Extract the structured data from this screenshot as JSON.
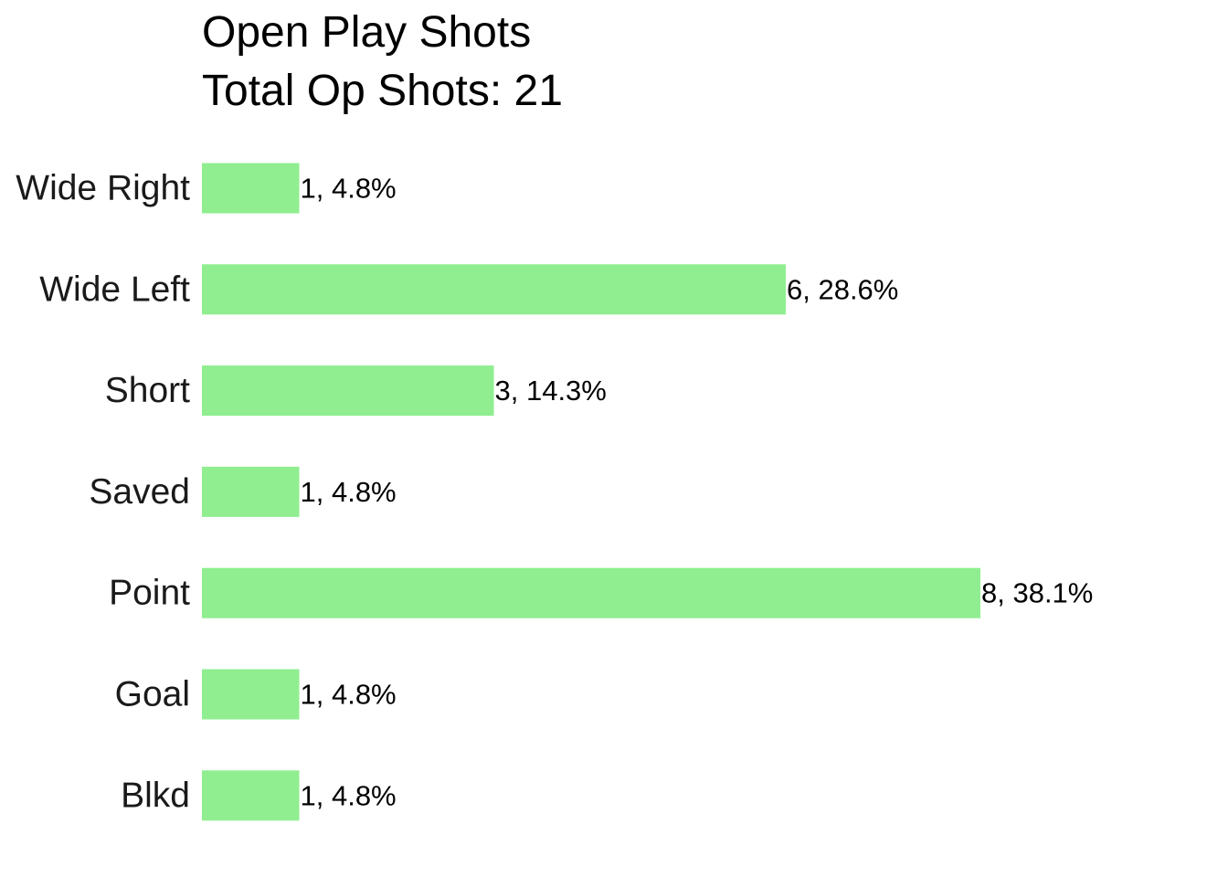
{
  "chart_data": {
    "type": "bar",
    "orientation": "horizontal",
    "title": "Open Play Shots",
    "subtitle": "Total Op Shots: 21",
    "total": 21,
    "categories": [
      "Wide Right",
      "Wide Left",
      "Short",
      "Saved",
      "Point",
      "Goal",
      "Blkd"
    ],
    "values": [
      1,
      6,
      3,
      1,
      8,
      1,
      1
    ],
    "data_labels": [
      "1, 4.8%",
      "6, 28.6%",
      "3, 14.3%",
      "1, 4.8%",
      "8, 38.1%",
      "1, 4.8%",
      "1, 4.8%"
    ],
    "bar_color": "#90ee90",
    "xlim": [
      0,
      8
    ],
    "grid": false,
    "legend": "none",
    "x_axis_visible": false
  }
}
